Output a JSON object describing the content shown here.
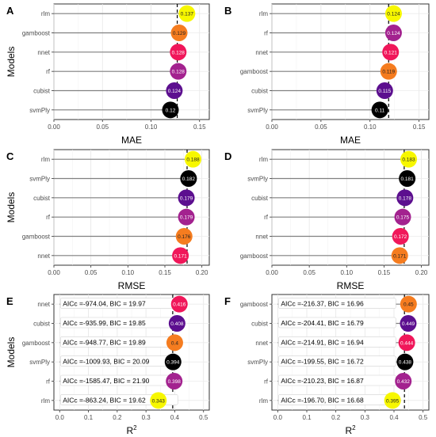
{
  "colors": {
    "rlm": "#f7f700",
    "gamboost": "#f57c1f",
    "nnet": "#f0175a",
    "rf": "#a3228f",
    "cubist": "#5c0f8f",
    "svmPly": "#000000"
  },
  "y_axis_title": "Models",
  "chart_data": [
    {
      "panel": "A",
      "type": "lollipop",
      "xlabel": "MAE",
      "xlim": [
        0,
        0.16
      ],
      "xticks": [
        0.0,
        0.05,
        0.1,
        0.15
      ],
      "tick_labels": [
        "0.00",
        "0.05",
        "0.10",
        "0.15"
      ],
      "categories": [
        "rlm",
        "gamboost",
        "nnet",
        "rf",
        "cubist",
        "svmPly"
      ],
      "values": [
        0.137,
        0.129,
        0.128,
        0.128,
        0.124,
        0.12
      ],
      "labels": [
        "0.137",
        "0.129",
        "0.128",
        "0.128",
        "0.124",
        "0.12"
      ],
      "ref_line": 0.127
    },
    {
      "panel": "B",
      "type": "lollipop",
      "xlabel": "MAE",
      "xlim": [
        0,
        0.16
      ],
      "xticks": [
        0.0,
        0.05,
        0.1,
        0.15
      ],
      "tick_labels": [
        "0.00",
        "0.05",
        "0.10",
        "0.15"
      ],
      "categories": [
        "rlm",
        "rf",
        "nnet",
        "gamboost",
        "cubist",
        "svmPly"
      ],
      "values": [
        0.124,
        0.124,
        0.121,
        0.119,
        0.115,
        0.11
      ],
      "labels": [
        "0.124",
        "0.124",
        "0.121",
        "0.119",
        "0.115",
        "0.11"
      ],
      "ref_line": 0.119
    },
    {
      "panel": "C",
      "type": "lollipop",
      "xlabel": "RMSE",
      "xlim": [
        0,
        0.21
      ],
      "xticks": [
        0.0,
        0.05,
        0.1,
        0.15,
        0.2
      ],
      "tick_labels": [
        "0.00",
        "0.05",
        "0.10",
        "0.15",
        "0.20"
      ],
      "categories": [
        "rlm",
        "svmPly",
        "cubist",
        "rf",
        "gamboost",
        "nnet"
      ],
      "values": [
        0.188,
        0.182,
        0.179,
        0.179,
        0.176,
        0.171
      ],
      "labels": [
        "0.188",
        "0.182",
        "0.179",
        "0.179",
        "0.176",
        "0.171"
      ],
      "ref_line": 0.18
    },
    {
      "panel": "D",
      "type": "lollipop",
      "xlabel": "RMSE",
      "xlim": [
        0,
        0.21
      ],
      "xticks": [
        0.0,
        0.05,
        0.1,
        0.15,
        0.2
      ],
      "tick_labels": [
        "0.00",
        "0.05",
        "0.10",
        "0.15",
        "0.20"
      ],
      "categories": [
        "rlm",
        "svmPly",
        "cubist",
        "rf",
        "nnet",
        "gamboost"
      ],
      "values": [
        0.183,
        0.181,
        0.178,
        0.175,
        0.172,
        0.171
      ],
      "labels": [
        "0.183",
        "0.181",
        "0.178",
        "0.175",
        "0.172",
        "0.171"
      ],
      "ref_line": 0.177
    },
    {
      "panel": "E",
      "type": "lollipop",
      "xlabel": "R",
      "xlabel_sup": "2",
      "xlim": [
        -0.02,
        0.52
      ],
      "xticks": [
        0.0,
        0.1,
        0.2,
        0.3,
        0.4,
        0.5
      ],
      "tick_labels": [
        "0.0",
        "0.1",
        "0.2",
        "0.3",
        "0.4",
        "0.5"
      ],
      "categories": [
        "nnet",
        "cubist",
        "gamboost",
        "svmPly",
        "rf",
        "rlm"
      ],
      "values": [
        0.416,
        0.408,
        0.4,
        0.394,
        0.398,
        0.343
      ],
      "labels": [
        "0.416",
        "0.408",
        "0.4",
        "0.394",
        "0.398",
        "0.343"
      ],
      "annotations": [
        "AICc =-974.04, BIC = 19.97",
        "AICc =-935.99, BIC = 19.85",
        "AICc =-948.77, BIC = 19.89",
        "AICc =-1009.93, BIC = 20.09",
        "AICc =-1585.47, BIC = 21.90",
        "AICc =-863.24, BIC = 19.62"
      ],
      "ref_line": 0.393
    },
    {
      "panel": "F",
      "type": "lollipop",
      "xlabel": "R",
      "xlabel_sup": "2",
      "xlim": [
        -0.02,
        0.52
      ],
      "xticks": [
        0.0,
        0.1,
        0.2,
        0.3,
        0.4,
        0.5
      ],
      "tick_labels": [
        "0.0",
        "0.1",
        "0.2",
        "0.3",
        "0.4",
        "0.5"
      ],
      "categories": [
        "gamboost",
        "cubist",
        "nnet",
        "svmPly",
        "rf",
        "rlm"
      ],
      "values": [
        0.45,
        0.449,
        0.444,
        0.438,
        0.432,
        0.395
      ],
      "labels": [
        "0.45",
        "0.449",
        "0.444",
        "0.438",
        "0.432",
        "0.395"
      ],
      "annotations": [
        "AICc =-216.37, BIC = 16.96",
        "AICc =-204.41, BIC = 16.79",
        "AICc =-214.91, BIC = 16.94",
        "AICc =-199.55, BIC = 16.72",
        "AICc =-210.23, BIC = 16.87",
        "AICc =-196.70, BIC = 16.68"
      ],
      "ref_line": 0.436
    }
  ]
}
